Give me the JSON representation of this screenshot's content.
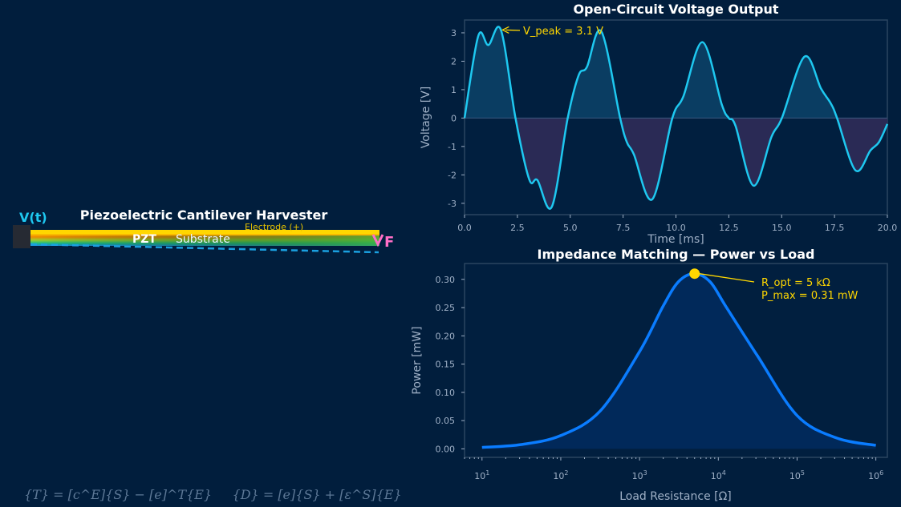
{
  "colors": {
    "background": "#011e3d",
    "voltage_line": "#1ec8f0",
    "positive_fill": "#0a3d62",
    "negative_fill": "#2a2a55",
    "power_line": "#0a7cff",
    "power_fill": "#01295a",
    "annotation": "#ffd700",
    "force_arrow": "#ff6ec7"
  },
  "diagram": {
    "title": "Piezoelectric Cantilever Harvester",
    "voltage_label": "V(t)",
    "pzt_label": "PZT",
    "electrode_label": "Electrode (+)",
    "substrate_label": "Substrate",
    "force_label": "F"
  },
  "equation": {
    "stress": "{T} = [c^E]{S} − [e]^T{E}",
    "displacement": "{D} = [e]{S} + [ε^S]{E}"
  },
  "chart_data": [
    {
      "type": "line",
      "title": "Open-Circuit Voltage Output",
      "xlabel": "Time [ms]",
      "ylabel": "Voltage [V]",
      "xlim": [
        0,
        20
      ],
      "ylim": [
        -3.4,
        3.45
      ],
      "xticks": [
        "0.0",
        "2.5",
        "5.0",
        "7.5",
        "10.0",
        "12.5",
        "15.0",
        "17.5",
        "20.0"
      ],
      "yticks": [
        "-3",
        "-2",
        "-1",
        "0",
        "1",
        "2",
        "3"
      ],
      "grid": false,
      "annotation": {
        "text": "V_peak = 3.1 V",
        "x": 1.72,
        "y": 3.1
      },
      "x": [
        0,
        0.65,
        1.13,
        1.72,
        2.41,
        3.06,
        3.45,
        4.13,
        4.88,
        5.4,
        5.79,
        6.47,
        7.36,
        7.68,
        8.01,
        8.88,
        9.83,
        10.35,
        11.26,
        12.17,
        12.5,
        12.82,
        13.67,
        14.52,
        15.01,
        16.08,
        16.86,
        17.32,
        17.62,
        18.49,
        19.2,
        19.6,
        20
      ],
      "y": [
        0,
        2.89,
        2.57,
        3.1,
        0,
        -2.16,
        -2.19,
        -3.12,
        0,
        1.51,
        1.8,
        3.05,
        0,
        -0.85,
        -1.28,
        -2.86,
        0,
        0.76,
        2.67,
        0.47,
        0,
        -0.28,
        -2.38,
        -0.66,
        0,
        2.16,
        1.04,
        0.52,
        0,
        -1.84,
        -1.14,
        -0.85,
        -0.21
      ]
    },
    {
      "type": "line",
      "title": "Impedance Matching — Power vs Load",
      "xlabel": "Load Resistance [Ω]",
      "ylabel": "Power [mW]",
      "xscale": "log",
      "xlim": [
        6,
        1400000
      ],
      "ylim": [
        -0.015,
        0.328
      ],
      "xticks": [
        "10^1",
        "10^2",
        "10^3",
        "10^4",
        "10^5",
        "10^6"
      ],
      "yticks": [
        "0.00",
        "0.05",
        "0.10",
        "0.15",
        "0.20",
        "0.25",
        "0.30"
      ],
      "grid": false,
      "optimum": {
        "R": 5000,
        "P": 0.31
      },
      "annotation": {
        "line1": "R_opt = 5 kΩ",
        "line2": "P_max = 0.31 mW"
      },
      "x": [
        10,
        31.6,
        100,
        316,
        1000,
        2000,
        3160,
        5000,
        7900,
        12600,
        31600,
        100000,
        316000,
        1000000
      ],
      "y": [
        0.0025,
        0.0077,
        0.0236,
        0.0669,
        0.1722,
        0.2531,
        0.2966,
        0.31,
        0.2954,
        0.251,
        0.1641,
        0.059,
        0.0193,
        0.0062
      ]
    }
  ]
}
